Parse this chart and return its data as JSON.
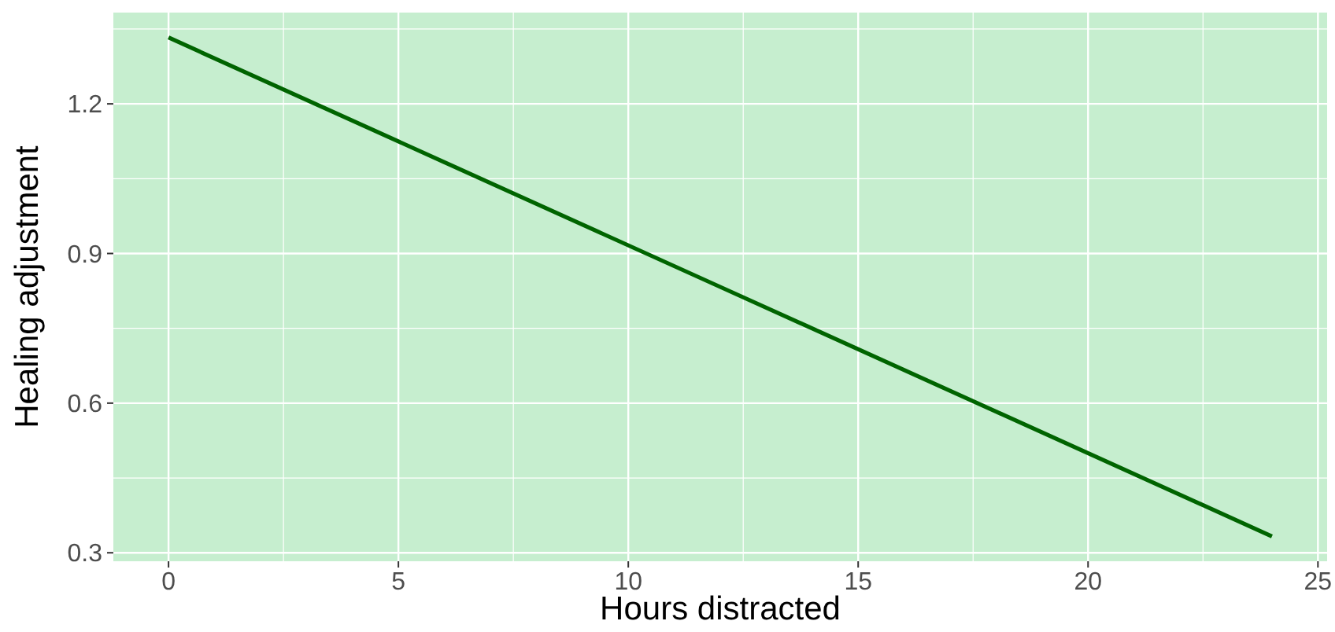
{
  "chart_data": {
    "type": "line",
    "xlabel": "Hours distracted",
    "ylabel": "Healing adjustment",
    "x": [
      0,
      6,
      12,
      18,
      24
    ],
    "series": [
      {
        "color": "#006400",
        "values": [
          1.333,
          1.083,
          0.833,
          0.583,
          0.333
        ]
      }
    ],
    "xlim": [
      -1.2,
      25.2
    ],
    "xticks": [
      0,
      5,
      10,
      15,
      20,
      25
    ],
    "ylim": [
      0.283,
      1.383
    ],
    "yticks": [
      {
        "value": 0.3,
        "label": "0.3"
      },
      {
        "value": 0.6,
        "label": "0.6"
      },
      {
        "value": 0.9,
        "label": "0.9"
      },
      {
        "value": 1.2,
        "label": "1.2"
      }
    ],
    "grid": true,
    "marker": "none",
    "line_style": "solid"
  }
}
